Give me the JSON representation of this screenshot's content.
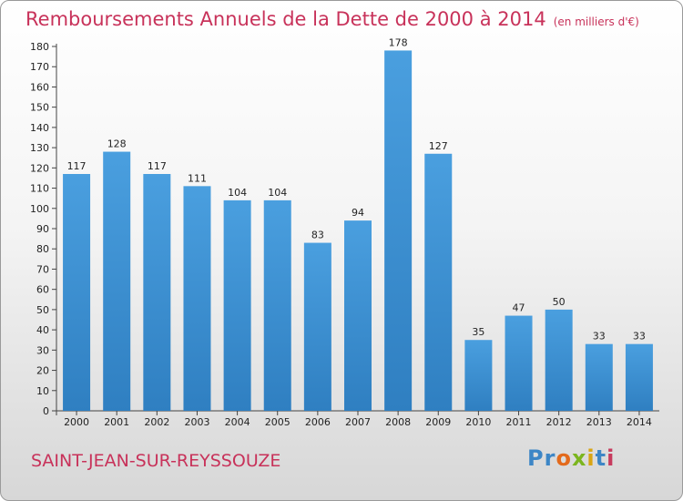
{
  "chart_data": {
    "type": "bar",
    "title": "Remboursements Annuels de la Dette de 2000 à 2014",
    "unit_note": "(en milliers d'€)",
    "categories": [
      "2000",
      "2001",
      "2002",
      "2003",
      "2004",
      "2005",
      "2006",
      "2007",
      "2008",
      "2009",
      "2010",
      "2011",
      "2012",
      "2013",
      "2014"
    ],
    "values": [
      117,
      128,
      117,
      111,
      104,
      104,
      83,
      94,
      178,
      127,
      35,
      47,
      50,
      33,
      33
    ],
    "ylim": [
      0,
      180
    ],
    "yticks": [
      0,
      10,
      20,
      30,
      40,
      50,
      60,
      70,
      80,
      90,
      100,
      110,
      120,
      130,
      140,
      150,
      160,
      170,
      180
    ],
    "grid": false,
    "bar_color": "#4a9fdf",
    "bar_color_dark": "#2f7fc1"
  },
  "footer": {
    "city": "SAINT-JEAN-SUR-REYSSOUZE",
    "logo": {
      "p1": "Pr",
      "p2": "o",
      "p3": "x",
      "p4": "i",
      "p5": "t",
      "p6": "i"
    }
  }
}
